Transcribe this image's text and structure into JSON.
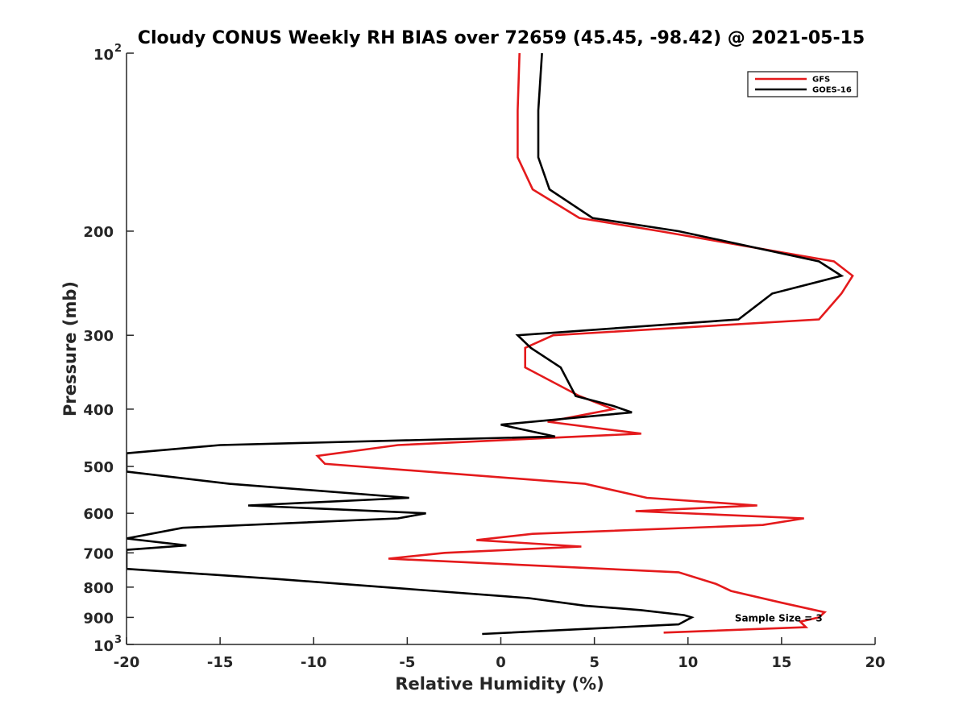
{
  "chart_data": {
    "type": "line",
    "title": "Cloudy CONUS Weekly RH BIAS over 72659 (45.45, -98.42) @ 2021-05-15",
    "xlabel": "Relative Humidity (%)",
    "ylabel": "Pressure (mb)",
    "xlim": [
      -20,
      20
    ],
    "ylim": [
      100,
      1000
    ],
    "y_scale": "log",
    "y_reversed": true,
    "grid": false,
    "legend_position": "top-right",
    "x_ticks": [
      -20,
      -15,
      -10,
      -5,
      0,
      5,
      10,
      15,
      20
    ],
    "y_ticks": [
      {
        "value": 100,
        "label": "10",
        "exp": "2"
      },
      {
        "value": 200,
        "label": "200"
      },
      {
        "value": 300,
        "label": "300"
      },
      {
        "value": 400,
        "label": "400"
      },
      {
        "value": 500,
        "label": "500"
      },
      {
        "value": 600,
        "label": "600"
      },
      {
        "value": 700,
        "label": "700"
      },
      {
        "value": 800,
        "label": "800"
      },
      {
        "value": 900,
        "label": "900"
      },
      {
        "value": 1000,
        "label": "10",
        "exp": "3"
      }
    ],
    "annotation": {
      "text": "Sample Size = 3",
      "x": 12.5,
      "y": 900
    },
    "series": [
      {
        "name": "GFS",
        "color": "#e41a1c",
        "points": [
          [
            1.0,
            100
          ],
          [
            0.9,
            125
          ],
          [
            0.9,
            150
          ],
          [
            1.7,
            170
          ],
          [
            4.2,
            190
          ],
          [
            8.5,
            200
          ],
          [
            17.8,
            225
          ],
          [
            18.8,
            238
          ],
          [
            18.2,
            255
          ],
          [
            17.0,
            282
          ],
          [
            2.8,
            300
          ],
          [
            1.3,
            315
          ],
          [
            1.3,
            340
          ],
          [
            4.2,
            380
          ],
          [
            6.0,
            400
          ],
          [
            2.5,
            420
          ],
          [
            7.5,
            440
          ],
          [
            -5.5,
            460
          ],
          [
            -9.8,
            480
          ],
          [
            -9.4,
            495
          ],
          [
            4.5,
            535
          ],
          [
            7.8,
            565
          ],
          [
            13.7,
            582
          ],
          [
            7.2,
            595
          ],
          [
            16.2,
            612
          ],
          [
            14.0,
            628
          ],
          [
            1.7,
            650
          ],
          [
            -1.3,
            666
          ],
          [
            4.3,
            683
          ],
          [
            -3.0,
            700
          ],
          [
            -6.0,
            716
          ],
          [
            9.5,
            755
          ],
          [
            11.5,
            790
          ],
          [
            12.3,
            812
          ],
          [
            15.0,
            850
          ],
          [
            17.3,
            882
          ],
          [
            17.0,
            900
          ],
          [
            16.0,
            915
          ],
          [
            16.3,
            935
          ],
          [
            8.7,
            955
          ]
        ]
      },
      {
        "name": "GOES-16",
        "color": "#000000",
        "points": [
          [
            2.2,
            100
          ],
          [
            2.0,
            125
          ],
          [
            2.0,
            150
          ],
          [
            2.6,
            170
          ],
          [
            4.9,
            190
          ],
          [
            9.5,
            200
          ],
          [
            17.0,
            225
          ],
          [
            18.2,
            238
          ],
          [
            14.5,
            255
          ],
          [
            12.7,
            282
          ],
          [
            0.9,
            300
          ],
          [
            1.6,
            315
          ],
          [
            3.2,
            340
          ],
          [
            4.0,
            380
          ],
          [
            6.0,
            395
          ],
          [
            7.0,
            405
          ],
          [
            0.0,
            425
          ],
          [
            2.9,
            445
          ],
          [
            -15.0,
            460
          ],
          [
            -20.0,
            475
          ],
          [
            -20.0,
            510
          ],
          [
            -14.5,
            535
          ],
          [
            -4.9,
            565
          ],
          [
            -13.5,
            582
          ],
          [
            -4.0,
            600
          ],
          [
            -5.5,
            612
          ],
          [
            -17.0,
            635
          ],
          [
            -20.0,
            662
          ],
          [
            -16.8,
            680
          ],
          [
            -20.0,
            692
          ],
          [
            -20.0,
            745
          ],
          [
            -12.0,
            775
          ],
          [
            1.5,
            835
          ],
          [
            4.5,
            860
          ],
          [
            7.5,
            875
          ],
          [
            9.8,
            892
          ],
          [
            10.2,
            900
          ],
          [
            9.5,
            925
          ],
          [
            -1.0,
            960
          ]
        ]
      }
    ]
  }
}
